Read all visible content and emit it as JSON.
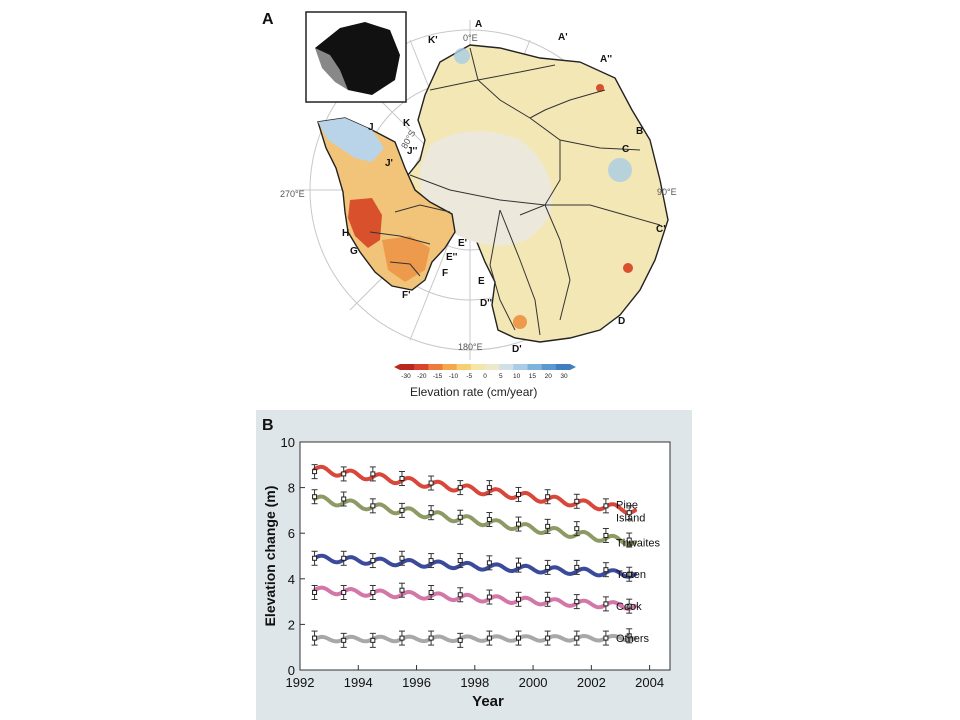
{
  "panel_a": {
    "label": "A",
    "longitudes": [
      "0°E",
      "90°E",
      "180°E",
      "270°E"
    ],
    "latitude_label": "80°S",
    "basin_labels": [
      "A",
      "A'",
      "A''",
      "B",
      "C",
      "C'",
      "D",
      "D'",
      "D''",
      "E",
      "E'",
      "E''",
      "F",
      "F'",
      "G",
      "H",
      "J",
      "J'",
      "J''",
      "K",
      "K'"
    ],
    "colorbar": {
      "title": "Elevation rate (cm/year)",
      "ticks": [
        "-30",
        "-20",
        "-15",
        "-10",
        "-5",
        "0",
        "5",
        "10",
        "15",
        "20",
        "30"
      ],
      "colors": [
        "#b8281e",
        "#d9452c",
        "#ee7a3d",
        "#f4a84e",
        "#f6cf74",
        "#f3e6a6",
        "#ece8c9",
        "#cfe0e8",
        "#a9cde6",
        "#7fb3dc",
        "#5a98cf",
        "#3f7fbf"
      ]
    },
    "inset": "antarctica-overview-map"
  },
  "panel_b": {
    "label": "B"
  },
  "chart_data": {
    "type": "line",
    "title": "",
    "xlabel": "Year",
    "ylabel": "Elevation change (m)",
    "xlim": [
      1992,
      2004.7
    ],
    "ylim": [
      0,
      10
    ],
    "xticks": [
      1992,
      1994,
      1996,
      1998,
      2000,
      2002,
      2004
    ],
    "yticks": [
      0,
      2,
      4,
      6,
      8,
      10
    ],
    "series": [
      {
        "name": "Pine Island",
        "color": "#d9463a",
        "fit_start": 1992.5,
        "fit_end": 2003.5,
        "y_start": 8.8,
        "y_end": 7.0,
        "amplitude": 0.15,
        "x": [
          1992.5,
          1993.5,
          1994.5,
          1995.5,
          1996.5,
          1997.5,
          1998.5,
          1999.5,
          2000.5,
          2001.5,
          2002.5,
          2003.3
        ],
        "y": [
          8.7,
          8.6,
          8.6,
          8.4,
          8.2,
          8.0,
          8.0,
          7.7,
          7.6,
          7.4,
          7.2,
          6.9
        ]
      },
      {
        "name": "Thwaites",
        "color": "#8e9a66",
        "fit_start": 1992.5,
        "fit_end": 2003.5,
        "y_start": 7.5,
        "y_end": 5.6,
        "amplitude": 0.15,
        "x": [
          1992.5,
          1993.5,
          1994.5,
          1995.5,
          1996.5,
          1997.5,
          1998.5,
          1999.5,
          2000.5,
          2001.5,
          2002.5,
          2003.3
        ],
        "y": [
          7.6,
          7.5,
          7.2,
          7.0,
          6.9,
          6.7,
          6.6,
          6.4,
          6.3,
          6.2,
          5.9,
          5.7
        ]
      },
      {
        "name": "Totten",
        "color": "#3b4a9a",
        "fit_start": 1992.5,
        "fit_end": 2003.5,
        "y_start": 4.9,
        "y_end": 4.2,
        "amplitude": 0.13,
        "x": [
          1992.5,
          1993.5,
          1994.5,
          1995.5,
          1996.5,
          1997.5,
          1998.5,
          1999.5,
          2000.5,
          2001.5,
          2002.5,
          2003.3
        ],
        "y": [
          4.9,
          4.9,
          4.8,
          4.9,
          4.8,
          4.8,
          4.7,
          4.6,
          4.5,
          4.5,
          4.4,
          4.2
        ]
      },
      {
        "name": "Cook",
        "color": "#d277a8",
        "fit_start": 1992.5,
        "fit_end": 2003.5,
        "y_start": 3.5,
        "y_end": 2.8,
        "amplitude": 0.13,
        "x": [
          1992.5,
          1993.5,
          1994.5,
          1995.5,
          1996.5,
          1997.5,
          1998.5,
          1999.5,
          2000.5,
          2001.5,
          2002.5,
          2003.3
        ],
        "y": [
          3.4,
          3.4,
          3.4,
          3.5,
          3.4,
          3.3,
          3.2,
          3.1,
          3.1,
          3.0,
          2.9,
          2.8
        ]
      },
      {
        "name": "Others",
        "color": "#a8a8a8",
        "fit_start": 1992.5,
        "fit_end": 2003.5,
        "y_start": 1.35,
        "y_end": 1.4,
        "amplitude": 0.1,
        "x": [
          1992.5,
          1993.5,
          1994.5,
          1995.5,
          1996.5,
          1997.5,
          1998.5,
          1999.5,
          2000.5,
          2001.5,
          2002.5,
          2003.3
        ],
        "y": [
          1.4,
          1.3,
          1.3,
          1.4,
          1.4,
          1.3,
          1.4,
          1.4,
          1.4,
          1.4,
          1.4,
          1.5
        ]
      }
    ],
    "series_labels": [
      "Pine\nIsland",
      "Thwaites",
      "Totten",
      "Cook",
      "Others"
    ],
    "grid": false,
    "legend": "right-of-lines"
  }
}
